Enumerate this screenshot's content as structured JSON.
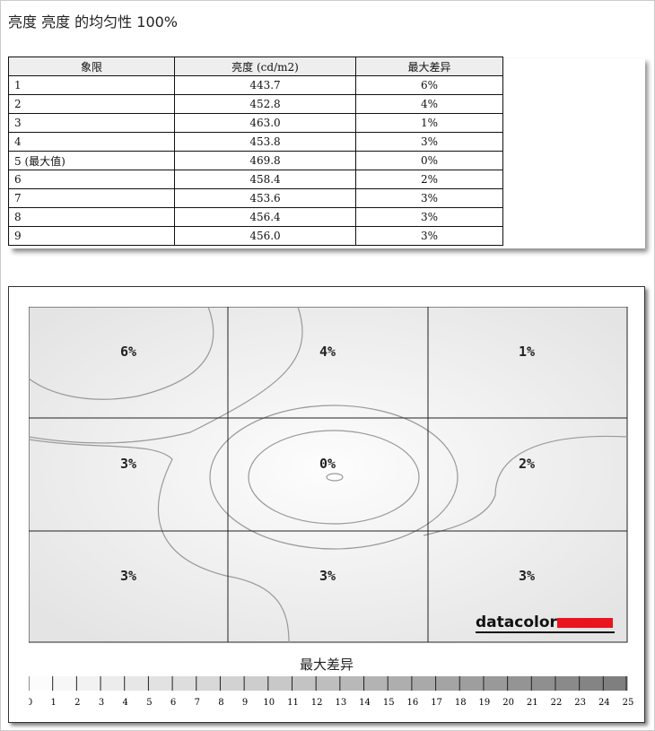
{
  "title": "亮度 亮度 的均匀性 100%",
  "table": {
    "headers": [
      "象限",
      "亮度 (cd/m2)",
      "最大差异"
    ],
    "rows": [
      [
        "1",
        "443.7",
        "6%"
      ],
      [
        "2",
        "452.8",
        "4%"
      ],
      [
        "3",
        "463.0",
        "1%"
      ],
      [
        "4",
        "453.8",
        "3%"
      ],
      [
        "5 (最大值)",
        "469.8",
        "0%"
      ],
      [
        "6",
        "458.4",
        "2%"
      ],
      [
        "7",
        "453.6",
        "3%"
      ],
      [
        "8",
        "456.4",
        "3%"
      ],
      [
        "9",
        "456.0",
        "3%"
      ]
    ]
  },
  "map": {
    "quadrant_labels": [
      "6%",
      "4%",
      "1%",
      "3%",
      "0%",
      "2%",
      "3%",
      "3%",
      "3%"
    ],
    "logo": "datacolor",
    "logo_color": "#e8141e"
  },
  "legend": {
    "title": "最大差异",
    "ticks": [
      "0",
      "1",
      "2",
      "3",
      "4",
      "5",
      "6",
      "7",
      "8",
      "9",
      "10",
      "11",
      "12",
      "13",
      "14",
      "15",
      "16",
      "17",
      "18",
      "19",
      "20",
      "21",
      "22",
      "23",
      "24",
      "25"
    ]
  }
}
